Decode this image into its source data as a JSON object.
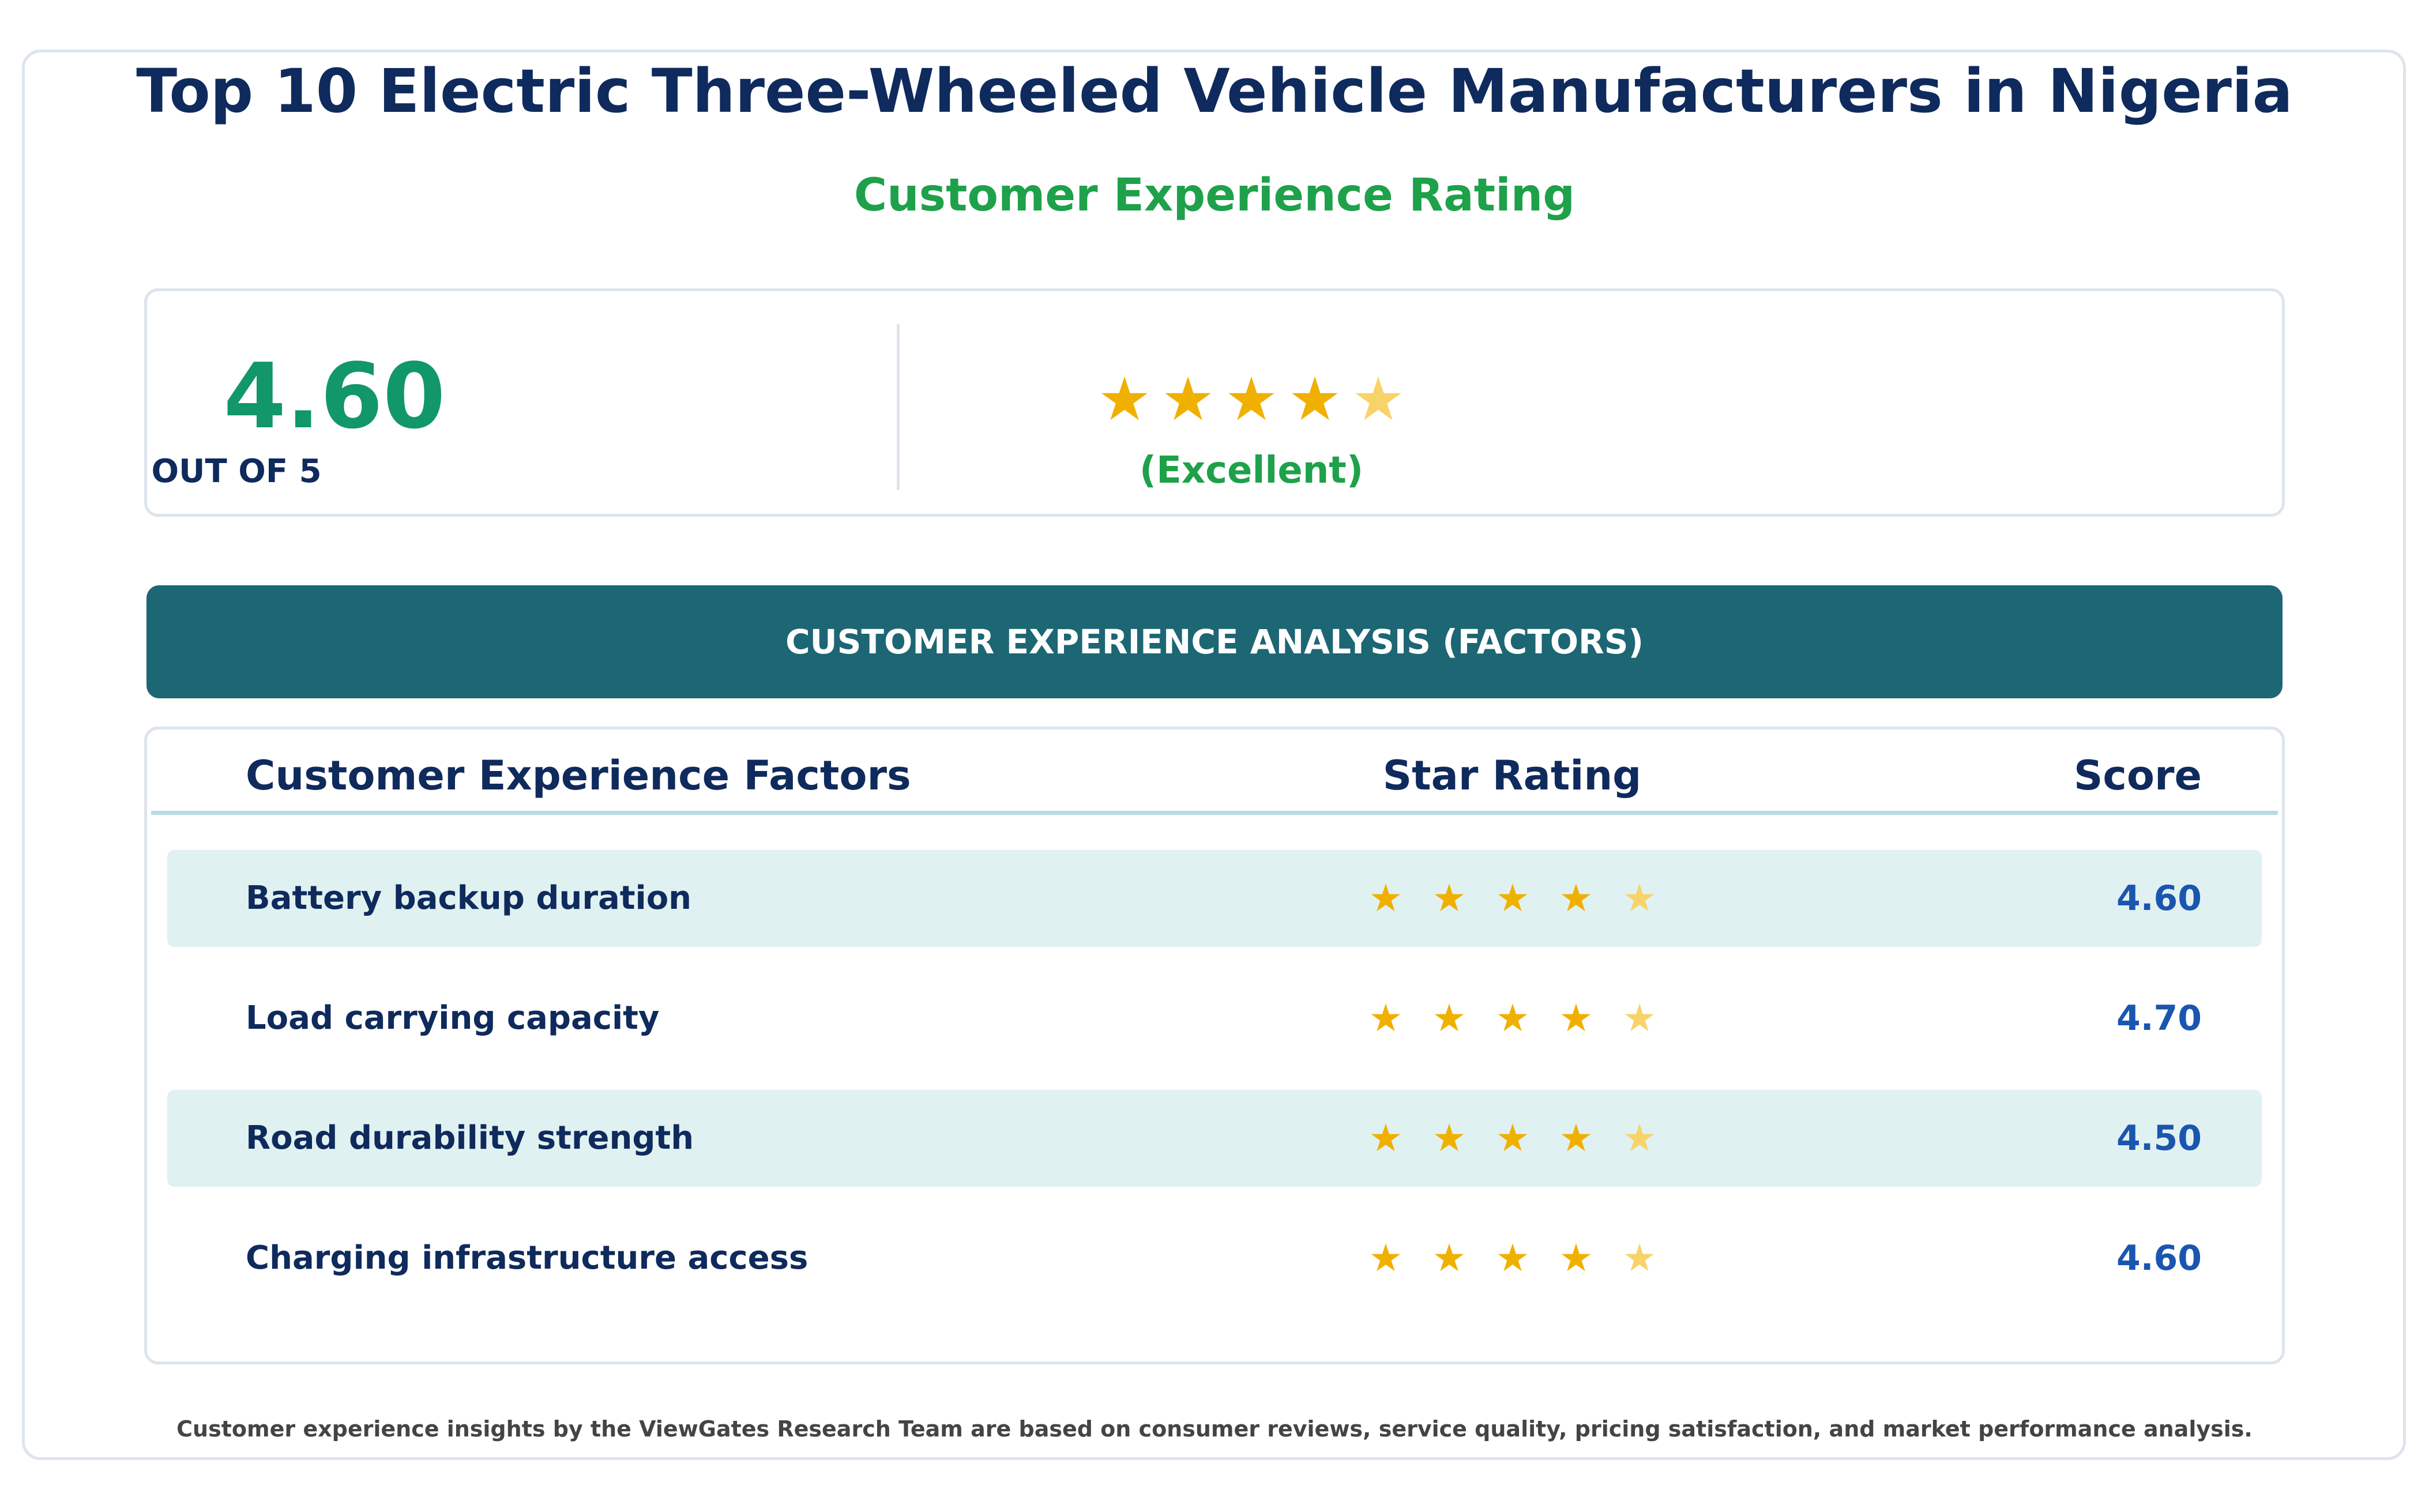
{
  "header": {
    "title": "Top 10 Electric Three-Wheeled Vehicle Manufacturers in Nigeria",
    "subtitle": "Customer Experience Rating"
  },
  "summary": {
    "score": "4.60",
    "out_of": "OUT OF 5",
    "rating_value": 4.6,
    "max_stars": 5,
    "label": "(Excellent)"
  },
  "banner": {
    "text": "CUSTOMER EXPERIENCE ANALYSIS (FACTORS)"
  },
  "table": {
    "columns": [
      "Customer Experience Factors",
      "Star Rating",
      "Score"
    ],
    "rows": [
      {
        "factor": "Battery backup duration",
        "rating": 4.6,
        "score": "4.60"
      },
      {
        "factor": "Load carrying capacity",
        "rating": 4.7,
        "score": "4.70"
      },
      {
        "factor": "Road durability strength",
        "rating": 4.5,
        "score": "4.50"
      },
      {
        "factor": "Charging infrastructure access",
        "rating": 4.6,
        "score": "4.60"
      }
    ]
  },
  "footer": {
    "note": "Customer experience insights by the ViewGates Research Team are based on consumer reviews, service quality, pricing satisfaction, and market performance analysis."
  },
  "colors": {
    "title": "#0f2a5c",
    "subtitle": "#1ea14a",
    "summary_score": "#11976a",
    "banner": "#1d6674",
    "star_full": "#f0b000",
    "star_partial": "#f8d36a",
    "row_shade": "#e0f1f1",
    "score_text": "#1a56b0"
  },
  "icons": {
    "star": "star-icon"
  }
}
